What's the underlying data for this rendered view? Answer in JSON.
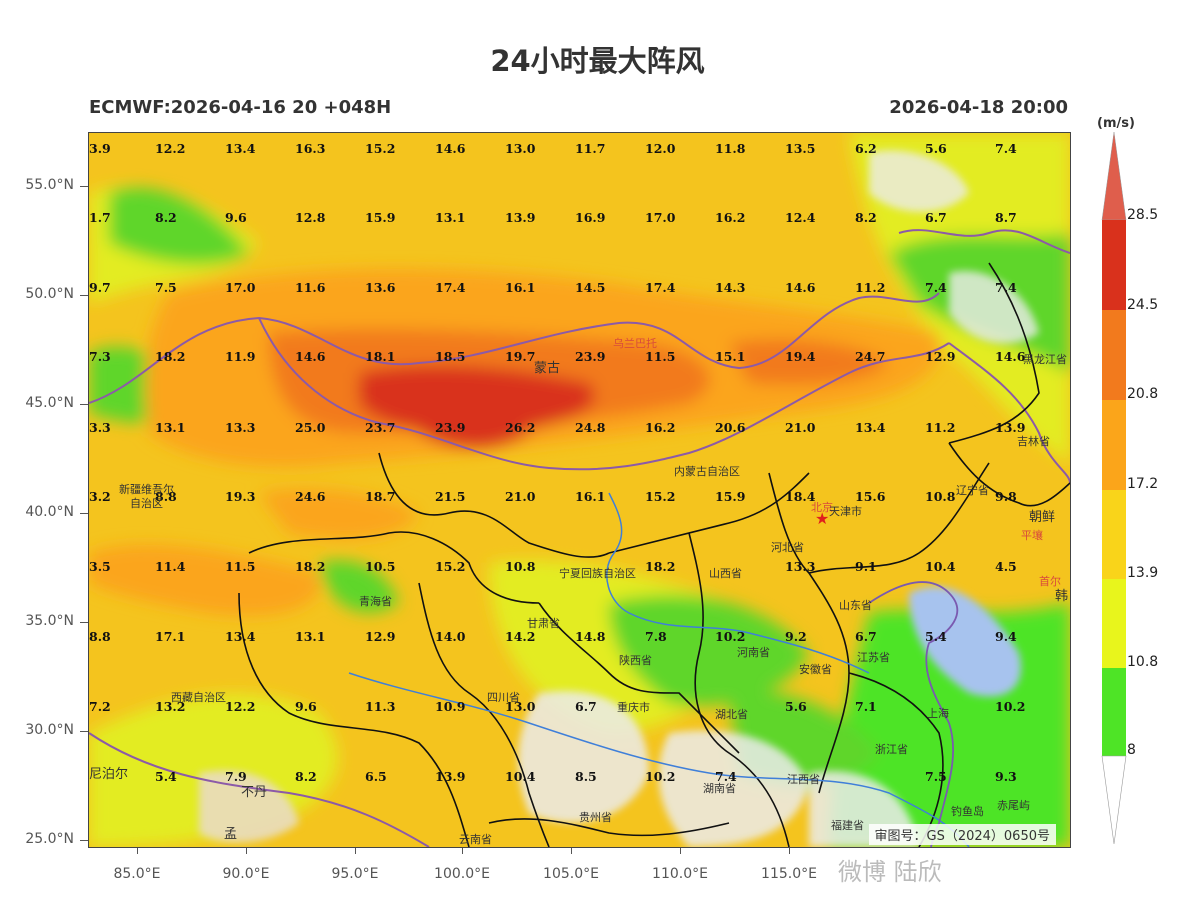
{
  "title": "24小时最大阵风",
  "model_run": "ECMWF:2026-04-16 20 +048H",
  "valid_time": "2026-04-18 20:00",
  "unit": "(m/s)",
  "approval_number": "审图号：GS（2024）0650号",
  "watermark": "微博 陆欣",
  "lat_ticks": [
    "55.0°N",
    "50.0°N",
    "45.0°N",
    "40.0°N",
    "35.0°N",
    "30.0°N",
    "25.0°N"
  ],
  "lon_ticks": [
    "85.0°E",
    "90.0°E",
    "95.0°E",
    "100.0°E",
    "105.0°E",
    "110.0°E",
    "115.0°E"
  ],
  "colorbar": {
    "levels": [
      "8",
      "10.8",
      "13.9",
      "17.2",
      "20.8",
      "24.5",
      "28.5"
    ],
    "colors": [
      "#4ee426",
      "#e8f51c",
      "#f9d41a",
      "#fba51a",
      "#f27a1d",
      "#d9311c",
      "#df5e4c"
    ]
  },
  "grid_values": [
    [
      "3.9",
      "12.2",
      "13.4",
      "16.3",
      "15.2",
      "14.6",
      "13.0",
      "11.7",
      "12.0",
      "11.8",
      "13.5",
      "6.2",
      "5.6",
      "7.4"
    ],
    [
      "1.7",
      "8.2",
      "9.6",
      "12.8",
      "15.9",
      "13.1",
      "13.9",
      "16.9",
      "17.0",
      "16.2",
      "12.4",
      "8.2",
      "6.7",
      "8.7"
    ],
    [
      "9.7",
      "7.5",
      "17.0",
      "11.6",
      "13.6",
      "17.4",
      "16.1",
      "14.5",
      "17.4",
      "14.3",
      "14.6",
      "11.2",
      "7.4",
      "7.4"
    ],
    [
      "7.3",
      "18.2",
      "11.9",
      "14.6",
      "18.1",
      "18.5",
      "19.7",
      "23.9",
      "11.5",
      "15.1",
      "19.4",
      "24.7",
      "12.9",
      "14.6"
    ],
    [
      "3.3",
      "13.1",
      "13.3",
      "25.0",
      "23.7",
      "23.9",
      "26.2",
      "24.8",
      "16.2",
      "20.6",
      "21.0",
      "13.4",
      "11.2",
      "13.9"
    ],
    [
      "3.2",
      "8.8",
      "19.3",
      "24.6",
      "18.7",
      "21.5",
      "21.0",
      "16.1",
      "15.2",
      "15.9",
      "18.4",
      "15.6",
      "10.8",
      "9.8"
    ],
    [
      "3.5",
      "11.4",
      "11.5",
      "18.2",
      "10.5",
      "15.2",
      "10.8",
      "",
      "18.2",
      "",
      "13.3",
      "9.1",
      "10.4",
      "4.5"
    ],
    [
      "8.8",
      "17.1",
      "13.4",
      "13.1",
      "12.9",
      "14.0",
      "14.2",
      "14.8",
      "7.8",
      "10.2",
      "9.2",
      "6.7",
      "5.4",
      "9.4"
    ],
    [
      "7.2",
      "13.2",
      "12.2",
      "9.6",
      "11.3",
      "10.9",
      "13.0",
      "6.7",
      "",
      "",
      "5.6",
      "7.1",
      "",
      "10.2"
    ],
    [
      "",
      "5.4",
      "7.9",
      "8.2",
      "6.5",
      "13.9",
      "10.4",
      "8.5",
      "10.2",
      "7.4",
      "",
      "",
      "7.5",
      "9.3"
    ]
  ],
  "places": [
    {
      "id": "mongolia",
      "name": "蒙古"
    },
    {
      "id": "ulaanbaatar",
      "name": "乌兰巴托"
    },
    {
      "id": "heilongjiang",
      "name": "黑龙江省"
    },
    {
      "id": "jilin",
      "name": "吉林省"
    },
    {
      "id": "liaoning",
      "name": "辽宁省"
    },
    {
      "id": "north-korea",
      "name": "朝鲜"
    },
    {
      "id": "pyongyang",
      "name": "平壤"
    },
    {
      "id": "seoul",
      "name": "首尔"
    },
    {
      "id": "korea",
      "name": "韩"
    },
    {
      "id": "inner-mongolia",
      "name": "内蒙古自治区"
    },
    {
      "id": "xinjiang",
      "name": "新疆维吾尔\n自治区"
    },
    {
      "id": "beijing",
      "name": "北京"
    },
    {
      "id": "tianjin",
      "name": "天津市"
    },
    {
      "id": "hebei",
      "name": "河北省"
    },
    {
      "id": "shanxi",
      "name": "山西省"
    },
    {
      "id": "shandong",
      "name": "山东省"
    },
    {
      "id": "ningxia",
      "name": "宁夏回族自治区"
    },
    {
      "id": "qinghai",
      "name": "青海省"
    },
    {
      "id": "gansu",
      "name": "甘肃省"
    },
    {
      "id": "shaanxi",
      "name": "陕西省"
    },
    {
      "id": "henan",
      "name": "河南省"
    },
    {
      "id": "anhui",
      "name": "安徽省"
    },
    {
      "id": "jiangsu",
      "name": "江苏省"
    },
    {
      "id": "shanghai",
      "name": "上海"
    },
    {
      "id": "zhejiang",
      "name": "浙江省"
    },
    {
      "id": "tibet",
      "name": "西藏自治区"
    },
    {
      "id": "sichuan",
      "name": "四川省"
    },
    {
      "id": "chongqing",
      "name": "重庆市"
    },
    {
      "id": "hubei",
      "name": "湖北省"
    },
    {
      "id": "hunan",
      "name": "湖南省"
    },
    {
      "id": "jiangxi",
      "name": "江西省"
    },
    {
      "id": "fujian",
      "name": "福建省"
    },
    {
      "id": "guizhou",
      "name": "贵州省"
    },
    {
      "id": "yunnan",
      "name": "云南省"
    },
    {
      "id": "nepal",
      "name": "尼泊尔"
    },
    {
      "id": "bhutan",
      "name": "不丹"
    },
    {
      "id": "bangladesh",
      "name": "孟"
    },
    {
      "id": "diaoyu",
      "name": "钓鱼岛"
    },
    {
      "id": "chiwei",
      "name": "赤尾屿"
    }
  ]
}
